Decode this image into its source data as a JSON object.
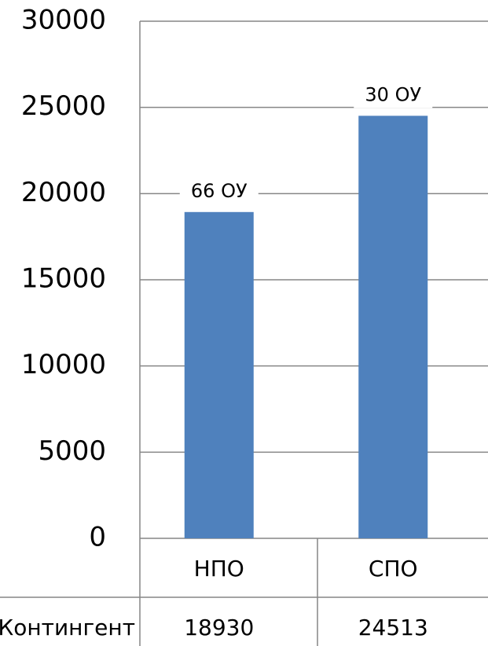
{
  "chart_data": {
    "type": "bar",
    "categories": [
      "НПО",
      "СПО"
    ],
    "values": [
      18930,
      24513
    ],
    "annotations": [
      "66 ОУ",
      "30 ОУ"
    ],
    "table_row_label": "Контингент",
    "color": "#4f81bd",
    "ylim": [
      0,
      30000
    ],
    "yticks": [
      0,
      5000,
      10000,
      15000,
      20000,
      25000,
      30000
    ],
    "grid": true
  }
}
